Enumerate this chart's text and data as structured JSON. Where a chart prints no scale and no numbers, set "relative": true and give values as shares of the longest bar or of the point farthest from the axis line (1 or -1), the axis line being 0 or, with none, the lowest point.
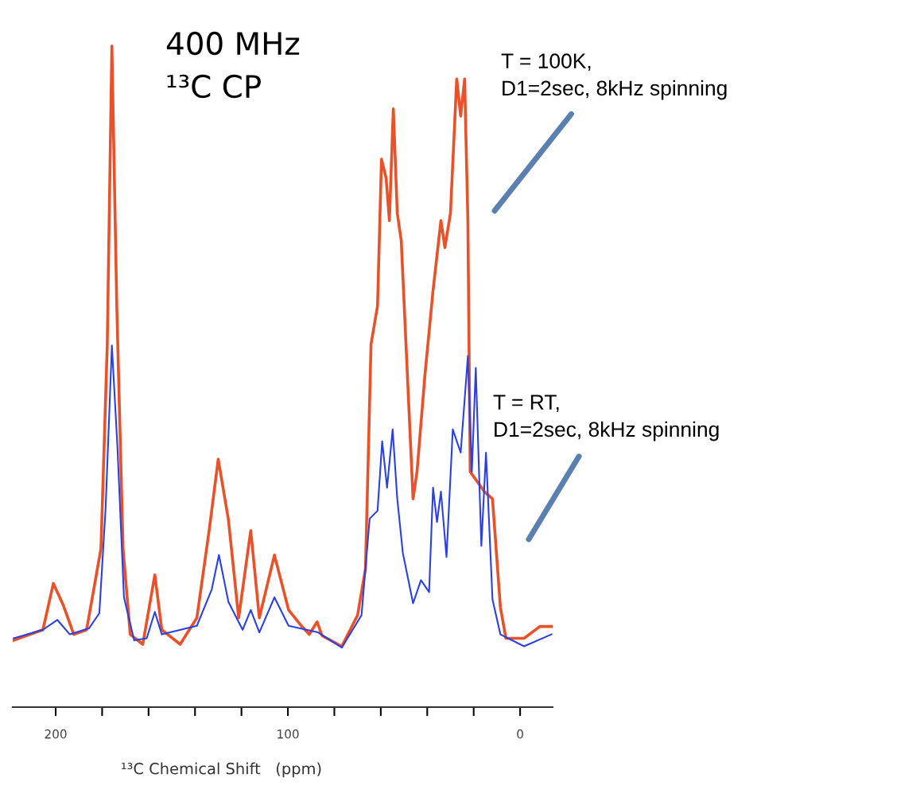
{
  "chart_data": {
    "type": "line",
    "relative": true,
    "xlabel": "¹³C Chemical Shift   (ppm)",
    "xlim": [
      218.5,
      -14
    ],
    "xticks": [
      {
        "value": 200,
        "label": "200"
      },
      {
        "value": 180,
        "label": null
      },
      {
        "value": 160,
        "label": null
      },
      {
        "value": 140,
        "label": null
      },
      {
        "value": 120,
        "label": null
      },
      {
        "value": 100,
        "label": "100"
      },
      {
        "value": 80,
        "label": null
      },
      {
        "value": 60,
        "label": null
      },
      {
        "value": 40,
        "label": null
      },
      {
        "value": 20,
        "label": null
      },
      {
        "value": 0,
        "label": "0"
      }
    ],
    "tick_labels": "x",
    "grid": false,
    "legend": false,
    "marker": "none",
    "line_style": "solid",
    "series": [
      {
        "color": "#e8522a",
        "x": [
          218.1,
          205.5,
          201.0,
          196.6,
          192.2,
          186.7,
          183.3,
          180.5,
          177.8,
          175.8,
          173.7,
          171.0,
          167.9,
          162.5,
          157.3,
          154.3,
          146.4,
          139.2,
          133.8,
          130.0,
          125.6,
          121.2,
          116.0,
          112.3,
          105.8,
          99.7,
          94.2,
          90.8,
          87.4,
          85.3,
          76.8,
          70.0,
          66.6,
          64.2,
          61.4,
          59.7,
          57.7,
          56.3,
          54.6,
          52.9,
          51.2,
          46.1,
          44.4,
          41.0,
          37.5,
          34.1,
          32.4,
          30.0,
          27.3,
          25.6,
          23.9,
          22.5,
          21.5,
          15.4,
          11.9,
          8.5,
          6.1,
          -1.7,
          -8.5,
          -13.5
        ],
        "values": [
          0.101,
          0.117,
          0.187,
          0.153,
          0.11,
          0.117,
          0.184,
          0.24,
          0.547,
          1.0,
          0.609,
          0.24,
          0.11,
          0.095,
          0.2,
          0.117,
          0.095,
          0.135,
          0.27,
          0.375,
          0.283,
          0.135,
          0.267,
          0.135,
          0.23,
          0.147,
          0.123,
          0.11,
          0.129,
          0.108,
          0.092,
          0.139,
          0.209,
          0.549,
          0.607,
          0.829,
          0.8,
          0.736,
          0.905,
          0.747,
          0.706,
          0.315,
          0.356,
          0.502,
          0.63,
          0.736,
          0.695,
          0.747,
          0.95,
          0.894,
          0.95,
          0.736,
          0.356,
          0.326,
          0.315,
          0.151,
          0.104,
          0.104,
          0.122,
          0.122
        ]
      },
      {
        "color": "#2a40e0",
        "x": [
          218.1,
          205.5,
          199.3,
          193.9,
          185.7,
          181.2,
          178.5,
          175.8,
          173.4,
          170.6,
          166.2,
          160.8,
          157.3,
          154.3,
          139.2,
          132.8,
          129.7,
          125.6,
          119.5,
          116.0,
          112.3,
          105.8,
          99.7,
          87.0,
          76.8,
          68.3,
          64.8,
          61.4,
          59.4,
          57.3,
          54.9,
          52.9,
          50.5,
          46.1,
          42.7,
          39.2,
          37.5,
          35.8,
          34.1,
          31.7,
          29.0,
          25.6,
          22.5,
          20.8,
          19.1,
          16.7,
          14.7,
          11.9,
          8.5,
          -1.7,
          -13.5
        ],
        "values": [
          0.104,
          0.117,
          0.132,
          0.11,
          0.119,
          0.142,
          0.301,
          0.547,
          0.393,
          0.166,
          0.101,
          0.104,
          0.144,
          0.11,
          0.123,
          0.178,
          0.23,
          0.159,
          0.117,
          0.147,
          0.113,
          0.166,
          0.123,
          0.113,
          0.09,
          0.139,
          0.285,
          0.297,
          0.402,
          0.332,
          0.42,
          0.315,
          0.233,
          0.157,
          0.192,
          0.174,
          0.332,
          0.28,
          0.326,
          0.227,
          0.42,
          0.385,
          0.531,
          0.356,
          0.513,
          0.244,
          0.385,
          0.163,
          0.11,
          0.092,
          0.11
        ]
      }
    ],
    "annotations": [
      "400 MHz",
      "¹³C CP",
      "T = 100K,\nD1=2sec, 8kHz spinning",
      "T = RT,\nD1=2sec, 8kHz spinning"
    ]
  }
}
